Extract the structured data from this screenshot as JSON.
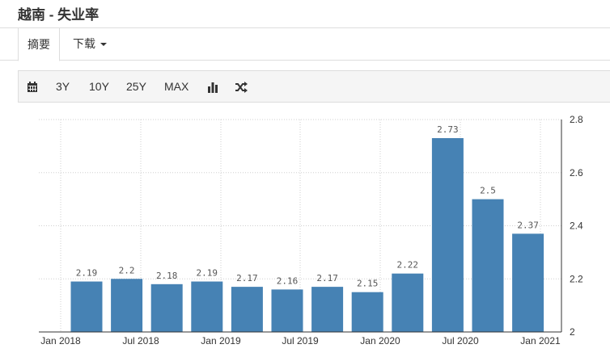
{
  "page": {
    "title": "越南 - 失业率"
  },
  "tabs": {
    "summary": "摘要",
    "download": "下载"
  },
  "toolbar": {
    "calendar_icon": "calendar-icon",
    "ranges": [
      "3Y",
      "10Y",
      "25Y",
      "MAX"
    ],
    "bar_chart_icon": "bar-chart-icon",
    "shuffle_icon": "shuffle-icon"
  },
  "chart_data": {
    "type": "bar",
    "categories": [
      "Q1 2018",
      "Q2 2018",
      "Q3 2018",
      "Q4 2018",
      "Q1 2019",
      "Q2 2019",
      "Q3 2019",
      "Q4 2019",
      "Q1 2020",
      "Q2 2020",
      "Q3 2020",
      "Q4 2020"
    ],
    "values": [
      2.19,
      2.2,
      2.18,
      2.19,
      2.17,
      2.16,
      2.17,
      2.15,
      2.22,
      2.73,
      2.5,
      2.37
    ],
    "data_labels": [
      "2.19",
      "2.2",
      "2.18",
      "2.19",
      "2.17",
      "2.16",
      "2.17",
      "2.15",
      "2.22",
      "2.73",
      "2.5",
      "2.37"
    ],
    "x_ticks": [
      "Jan 2018",
      "Jul 2018",
      "Jan 2019",
      "Jul 2019",
      "Jan 2020",
      "Jul 2020",
      "Jan 2021"
    ],
    "y_ticks": [
      "2",
      "2.2",
      "2.4",
      "2.6",
      "2.8"
    ],
    "ylim": [
      2,
      2.8
    ],
    "y_axis_position": "right",
    "grid": true,
    "bar_color": "#4682b4"
  }
}
